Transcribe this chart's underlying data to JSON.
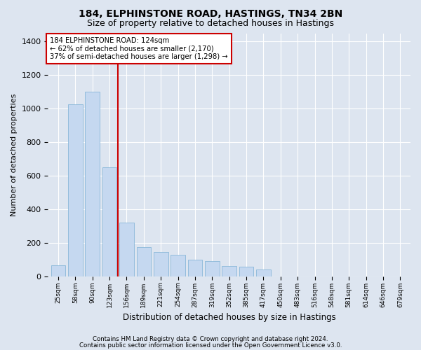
{
  "title": "184, ELPHINSTONE ROAD, HASTINGS, TN34 2BN",
  "subtitle": "Size of property relative to detached houses in Hastings",
  "xlabel": "Distribution of detached houses by size in Hastings",
  "ylabel": "Number of detached properties",
  "footer1": "Contains HM Land Registry data © Crown copyright and database right 2024.",
  "footer2": "Contains public sector information licensed under the Open Government Licence v3.0.",
  "annotation_line1": "184 ELPHINSTONE ROAD: 124sqm",
  "annotation_line2": "← 62% of detached houses are smaller (2,170)",
  "annotation_line3": "37% of semi-detached houses are larger (1,298) →",
  "property_size_idx": 3,
  "bin_labels": [
    "25sqm",
    "58sqm",
    "90sqm",
    "123sqm",
    "156sqm",
    "189sqm",
    "221sqm",
    "254sqm",
    "287sqm",
    "319sqm",
    "352sqm",
    "385sqm",
    "417sqm",
    "450sqm",
    "483sqm",
    "516sqm",
    "548sqm",
    "581sqm",
    "614sqm",
    "646sqm",
    "679sqm"
  ],
  "counts": [
    65,
    1025,
    1100,
    650,
    320,
    175,
    145,
    130,
    100,
    90,
    60,
    55,
    40,
    0,
    0,
    0,
    0,
    0,
    0,
    0,
    0
  ],
  "bar_color": "#c5d8f0",
  "bar_edge_color": "#7bafd4",
  "vline_color": "#cc0000",
  "background_color": "#dde5f0",
  "plot_bg_color": "#dde5f0",
  "ylim": [
    0,
    1450
  ],
  "yticks": [
    0,
    200,
    400,
    600,
    800,
    1000,
    1200,
    1400
  ],
  "grid_color": "#ffffff",
  "title_fontsize": 10,
  "subtitle_fontsize": 9
}
